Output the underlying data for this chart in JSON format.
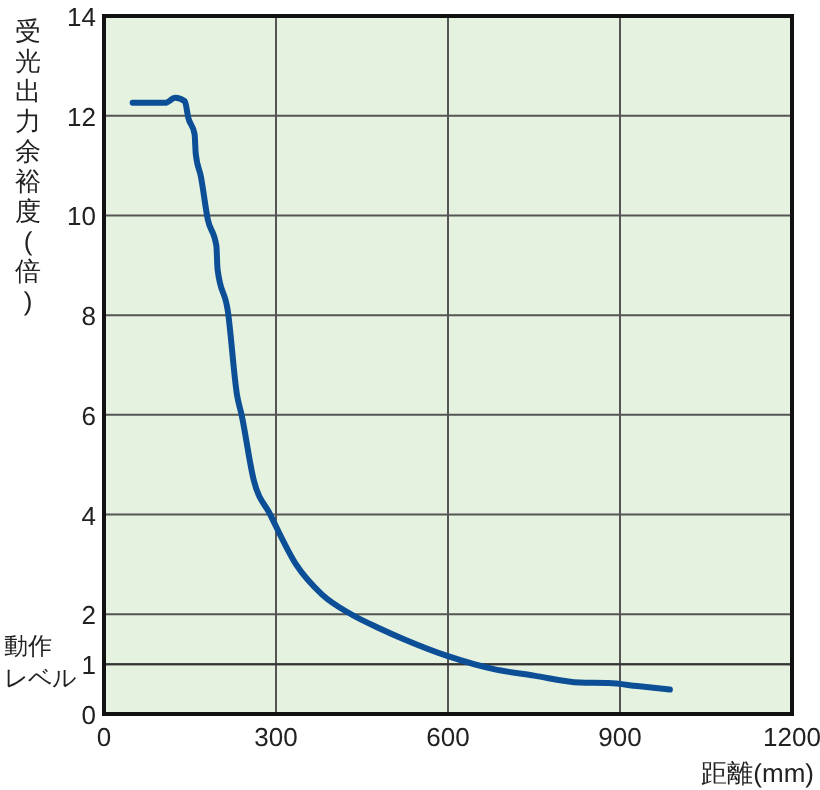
{
  "chart_data": {
    "type": "line",
    "xlabel": "距離(mm)",
    "ylabel": "受光出力余裕度(倍)",
    "xlim": [
      0,
      1200
    ],
    "xticks": [
      0,
      300,
      600,
      900,
      1200
    ],
    "ylim": [
      0,
      14
    ],
    "yticks": [
      0,
      1,
      2,
      4,
      6,
      8,
      10,
      12,
      14
    ],
    "grid": true,
    "ref_lines": [
      {
        "axis": "y",
        "value": 1,
        "label": "動作レベル"
      }
    ],
    "series": [
      {
        "color": "#0d4f97",
        "x": [
          50,
          107,
          124,
          141,
          147,
          158,
          160,
          169,
          181,
          196,
          198,
          216,
          232,
          240,
          261,
          290,
          335,
          380,
          431,
          480,
          523,
          600,
          680,
          750,
          830,
          880,
          930,
          987
        ],
        "values": [
          12.26,
          12.26,
          12.36,
          12.29,
          11.96,
          11.63,
          11.24,
          10.78,
          9.92,
          9.39,
          8.93,
          8.08,
          6.4,
          6.0,
          4.7,
          4.0,
          3.0,
          2.4,
          2.0,
          1.72,
          1.5,
          1.16,
          0.9,
          0.77,
          0.63,
          0.62,
          0.56,
          0.49
        ]
      }
    ]
  }
}
